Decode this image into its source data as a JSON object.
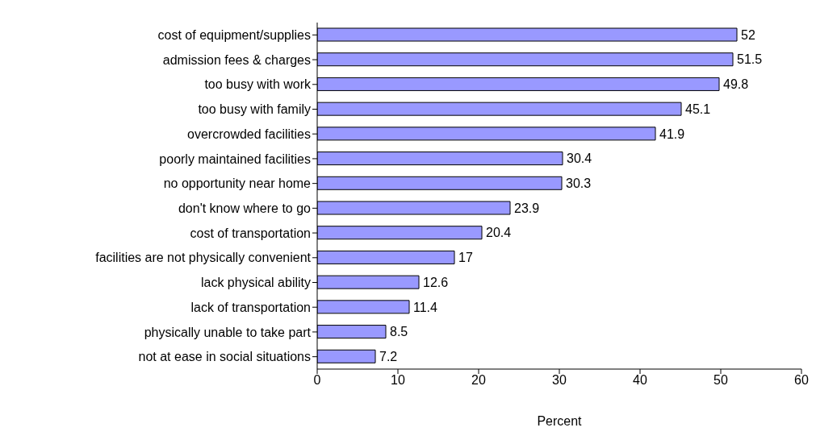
{
  "chart_data": {
    "type": "bar",
    "orientation": "horizontal",
    "xlabel": "Percent",
    "categories": [
      "cost of equipment/supplies",
      "admission fees & charges",
      "too busy with work",
      "too busy with family",
      "overcrowded facilities",
      "poorly maintained facilities",
      "no opportunity near home",
      "don't know where to go",
      "cost of transportation",
      "facilities are not physically convenient",
      "lack physical ability",
      "lack of transportation",
      "physically unable to take part",
      "not at ease in social situations"
    ],
    "values": [
      52,
      51.5,
      49.8,
      45.1,
      41.9,
      30.4,
      30.3,
      23.9,
      20.4,
      17,
      12.6,
      11.4,
      8.5,
      7.2
    ],
    "color": "#9999ff",
    "xlim": [
      0,
      60
    ],
    "xticks": [
      0,
      10,
      20,
      30,
      40,
      50,
      60
    ],
    "data_labels": true
  }
}
